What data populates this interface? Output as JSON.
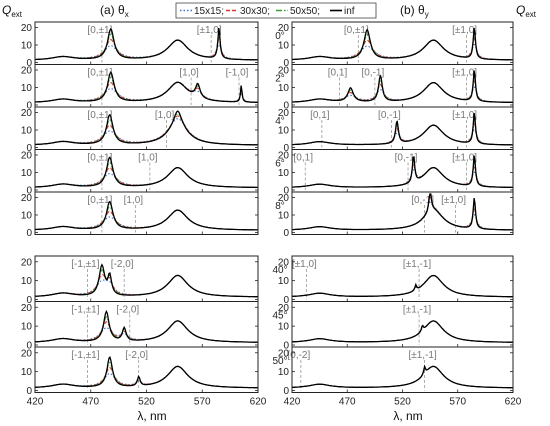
{
  "chart_data": {
    "type": "line",
    "ylabel_main": "Q",
    "ylabel_sub": "ext",
    "xlabel": "λ, nm",
    "xlim": [
      420,
      620
    ],
    "xticks": [
      420,
      470,
      520,
      570,
      620
    ],
    "legend": {
      "placement": "top-center",
      "entries": [
        {
          "name": "15x15;",
          "color": "#3b6fd1",
          "dash": "1.5 2"
        },
        {
          "name": "30x30;",
          "color": "#d83a2a",
          "dash": "4 2"
        },
        {
          "name": "50x50;",
          "color": "#3aa335",
          "dash": "6 2 1.5 2"
        },
        {
          "name": "inf",
          "color": "#000000",
          "dash": ""
        }
      ]
    },
    "columns": [
      {
        "title": "(a) θ",
        "title_sub": "x"
      },
      {
        "title": "(b) θ",
        "title_sub": "y"
      }
    ],
    "top_group": {
      "ylim": [
        0,
        22
      ],
      "yticks": [
        0,
        10,
        20
      ],
      "angles": [
        "0°",
        "2°",
        "4°",
        "6°",
        "8°"
      ],
      "panels": [
        {
          "col": 0,
          "row": 0,
          "peaks": [
            {
              "c": 488,
              "h": 17.5,
              "w": 3.5
            },
            {
              "c": 585,
              "h": 18,
              "w": 1.2
            }
          ],
          "anns": [
            {
              "text": "[0,±1]",
              "x": 480
            },
            {
              "text": "[±1,0]",
              "x": 578
            }
          ]
        },
        {
          "col": 0,
          "row": 1,
          "peaks": [
            {
              "c": 488,
              "h": 17,
              "w": 3.5
            },
            {
              "c": 566,
              "h": 8,
              "w": 2.5
            },
            {
              "c": 605,
              "h": 10,
              "w": 0.8
            }
          ],
          "anns": [
            {
              "text": "[0,±1]",
              "x": 480
            },
            {
              "text": "[1,0]",
              "x": 560
            },
            {
              "text": "[-1,0]",
              "x": 603
            }
          ]
        },
        {
          "col": 0,
          "row": 2,
          "peaks": [
            {
              "c": 487,
              "h": 17,
              "w": 3.5
            },
            {
              "c": 548,
              "h": 8,
              "w": 4
            }
          ],
          "anns": [
            {
              "text": "[0,±1]",
              "x": 480
            },
            {
              "text": "[1,0]",
              "x": 538
            }
          ]
        },
        {
          "col": 0,
          "row": 3,
          "peaks": [
            {
              "c": 487,
              "h": 17,
              "w": 3.5
            }
          ],
          "anns": [
            {
              "text": "[0,±1]",
              "x": 480
            },
            {
              "text": "[1,0]",
              "x": 523
            }
          ]
        },
        {
          "col": 0,
          "row": 4,
          "peaks": [
            {
              "c": 487,
              "h": 16,
              "w": 3.5
            }
          ],
          "anns": [
            {
              "text": "[0,±1]",
              "x": 480
            },
            {
              "text": "[1,0]",
              "x": 510
            }
          ]
        },
        {
          "col": 1,
          "row": 0,
          "peaks": [
            {
              "c": 488,
              "h": 17,
              "w": 3.5
            },
            {
              "c": 585,
              "h": 18,
              "w": 1.2
            }
          ],
          "anns": [
            {
              "text": "[0,±1]",
              "x": 480
            },
            {
              "text": "[±1,0]",
              "x": 578
            }
          ]
        },
        {
          "col": 1,
          "row": 1,
          "peaks": [
            {
              "c": 473,
              "h": 8,
              "w": 3
            },
            {
              "c": 500,
              "h": 15,
              "w": 2
            },
            {
              "c": 585,
              "h": 18,
              "w": 1.2
            }
          ],
          "anns": [
            {
              "text": "[0,1]",
              "x": 463
            },
            {
              "text": "[0,-1]",
              "x": 495
            },
            {
              "text": "[±1,0]",
              "x": 578
            }
          ]
        },
        {
          "col": 1,
          "row": 2,
          "peaks": [
            {
              "c": 515,
              "h": 13,
              "w": 1.5
            },
            {
              "c": 585,
              "h": 18,
              "w": 1.2
            }
          ],
          "anns": [
            {
              "text": "[0,1]",
              "x": 447
            },
            {
              "text": "[0,-1]",
              "x": 510
            },
            {
              "text": "[±1,0]",
              "x": 578
            }
          ]
        },
        {
          "col": 1,
          "row": 3,
          "peaks": [
            {
              "c": 530,
              "h": 16,
              "w": 1.2
            },
            {
              "c": 585,
              "h": 18,
              "w": 1.2
            }
          ],
          "anns": [
            {
              "text": "[0,1]",
              "x": 432
            },
            {
              "text": "[0,-1]",
              "x": 525
            },
            {
              "text": "[±1,0]",
              "x": 578
            }
          ]
        },
        {
          "col": 1,
          "row": 4,
          "peaks": [
            {
              "c": 545,
              "h": 13,
              "w": 1.2
            },
            {
              "c": 585,
              "h": 18,
              "w": 1.2
            }
          ],
          "anns": [
            {
              "text": "[0,-1]",
              "x": 540
            },
            {
              "text": "[±1,0]",
              "x": 568
            }
          ]
        }
      ]
    },
    "bottom_group": {
      "ylim": [
        0,
        22
      ],
      "yticks": [
        0,
        10,
        20
      ],
      "angles": [
        "40°",
        "45°",
        "50°"
      ],
      "panels": [
        {
          "col": 0,
          "row": 0,
          "peaks": [
            {
              "c": 480,
              "h": 16,
              "w": 3
            },
            {
              "c": 487,
              "h": 10,
              "w": 2
            }
          ],
          "anns": [
            {
              "text": "[-1,±1]",
              "x": 467
            },
            {
              "text": "[-2,0]",
              "x": 500
            }
          ]
        },
        {
          "col": 0,
          "row": 1,
          "peaks": [
            {
              "c": 484,
              "h": 16,
              "w": 3
            },
            {
              "c": 500,
              "h": 7,
              "w": 2
            }
          ],
          "anns": [
            {
              "text": "[-1,±1]",
              "x": 467
            },
            {
              "text": "[-2,0]",
              "x": 505
            }
          ]
        },
        {
          "col": 0,
          "row": 2,
          "peaks": [
            {
              "c": 487,
              "h": 16,
              "w": 3
            },
            {
              "c": 513,
              "h": 5,
              "w": 1.5
            }
          ],
          "anns": [
            {
              "text": "[-1,±1]",
              "x": 467
            },
            {
              "text": "[-2,0]",
              "x": 513
            }
          ]
        },
        {
          "col": 1,
          "row": 0,
          "peaks": [
            {
              "c": 532,
              "h": 3,
              "w": 1
            }
          ],
          "anns": [
            {
              "text": "[±1,0]",
              "x": 433
            },
            {
              "text": "[±1,-1]",
              "x": 535
            }
          ]
        },
        {
          "col": 1,
          "row": 1,
          "peaks": [
            {
              "c": 538,
              "h": 3,
              "w": 1
            }
          ],
          "anns": [
            {
              "text": "[±1,-1]",
              "x": 535
            }
          ]
        },
        {
          "col": 1,
          "row": 2,
          "peaks": [
            {
              "c": 540,
              "h": 4,
              "w": 1
            }
          ],
          "anns": [
            {
              "text": "[0,-2]",
              "x": 428
            },
            {
              "text": "[±1,-1]",
              "x": 540
            }
          ]
        }
      ]
    }
  }
}
